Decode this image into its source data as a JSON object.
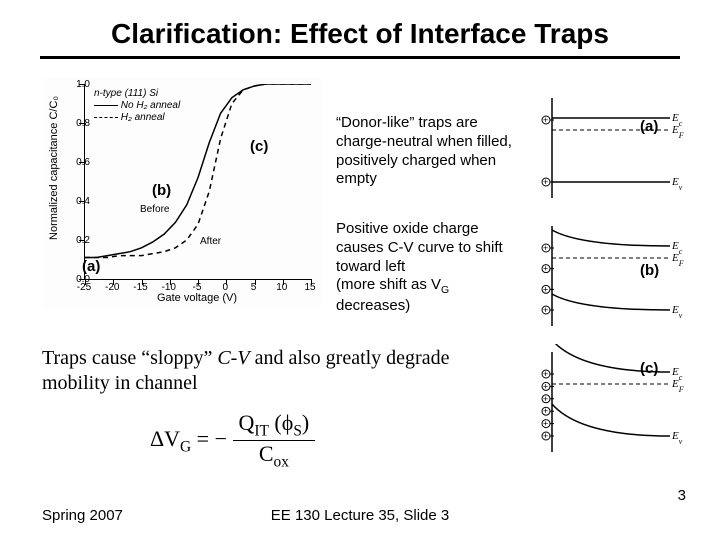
{
  "title": "Clarification: Effect of Interface Traps",
  "cv_plot": {
    "type": "line",
    "ylabel": "Normalized capacitance C/C₀",
    "xlabel": "Gate voltage  (V)",
    "ylim": [
      0,
      1.0
    ],
    "yticks": [
      0,
      0.2,
      0.4,
      0.6,
      0.8,
      1.0
    ],
    "xlim": [
      -25,
      15
    ],
    "xticks": [
      -25,
      -20,
      -15,
      -10,
      -5,
      0,
      5,
      10,
      15
    ],
    "legend_header": "n-type (111) Si",
    "legend_items": [
      "No H₂ anneal",
      "H₂ anneal"
    ],
    "legend_styles": [
      "solid",
      "dashed"
    ],
    "labels": {
      "a": "(a)",
      "b": "(b)",
      "c": "(c)"
    },
    "label_pos": {
      "a": [
        0.14,
        0.76
      ],
      "b": [
        0.38,
        0.42
      ],
      "c": [
        0.75,
        0.25
      ]
    },
    "inline": {
      "before": "Before",
      "after": "After"
    },
    "curve_solid": [
      [
        -25,
        0.11
      ],
      [
        -23,
        0.11
      ],
      [
        -21,
        0.12
      ],
      [
        -19,
        0.13
      ],
      [
        -17,
        0.14
      ],
      [
        -15,
        0.16
      ],
      [
        -13,
        0.19
      ],
      [
        -11,
        0.23
      ],
      [
        -9,
        0.29
      ],
      [
        -7,
        0.38
      ],
      [
        -5,
        0.52
      ],
      [
        -3,
        0.7
      ],
      [
        -1,
        0.85
      ],
      [
        1,
        0.93
      ],
      [
        3,
        0.97
      ],
      [
        5,
        0.99
      ],
      [
        7,
        1.0
      ],
      [
        9,
        1.0
      ],
      [
        11,
        1.0
      ],
      [
        13,
        1.0
      ],
      [
        15,
        1.0
      ]
    ],
    "curve_dashed": [
      [
        -25,
        0.11
      ],
      [
        -23,
        0.11
      ],
      [
        -21,
        0.11
      ],
      [
        -19,
        0.12
      ],
      [
        -17,
        0.12
      ],
      [
        -15,
        0.12
      ],
      [
        -13,
        0.13
      ],
      [
        -11,
        0.14
      ],
      [
        -9,
        0.16
      ],
      [
        -7,
        0.2
      ],
      [
        -5,
        0.28
      ],
      [
        -3,
        0.45
      ],
      [
        -1,
        0.72
      ],
      [
        1,
        0.9
      ],
      [
        3,
        0.97
      ],
      [
        5,
        0.99
      ],
      [
        7,
        1.0
      ],
      [
        9,
        1.0
      ],
      [
        11,
        1.0
      ],
      [
        13,
        1.0
      ],
      [
        15,
        1.0
      ]
    ],
    "line_color": "#000000",
    "line_width": 1.5,
    "background_color": "#ffffff"
  },
  "annotations": {
    "donor": "“Donor-like” traps are charge-neutral when filled, positively charged when empty",
    "oxide": "Positive oxide charge causes C-V curve to shift toward left",
    "oxide_paren": " (more shift as V",
    "oxide_sub": "G",
    "oxide_tail": " decreases)"
  },
  "band_labels": {
    "a": "(a)",
    "b": "(b)",
    "c": "(c)"
  },
  "band_energy": {
    "ec": "E",
    "ec_sub": "c",
    "ef": "E",
    "ef_sub": "F",
    "ev": "E",
    "ev_sub": "v"
  },
  "band_diagrams": {
    "type": "band-diagram",
    "panels": [
      "flatband",
      "moderate-bending",
      "strong-bending"
    ],
    "interface_charges": [
      2,
      4,
      6
    ],
    "line_color": "#000000",
    "line_width": 1.5
  },
  "sentence": {
    "pre": "Traps cause “sloppy” ",
    "cv": "C-V",
    "post": " and also greatly degrade mobility in channel"
  },
  "equation": {
    "dvg": "ΔV",
    "g": "G",
    "eq": " = − ",
    "num_q": "Q",
    "num_it": "IT",
    "num_phi": " (ϕ",
    "num_s": "S",
    "num_close": ")",
    "den_c": "C",
    "den_ox": "ox"
  },
  "footer": {
    "left": "Spring 2007",
    "center": "EE 130 Lecture 35, Slide 3",
    "page": "3"
  },
  "colors": {
    "text": "#000000",
    "background": "#ffffff"
  }
}
